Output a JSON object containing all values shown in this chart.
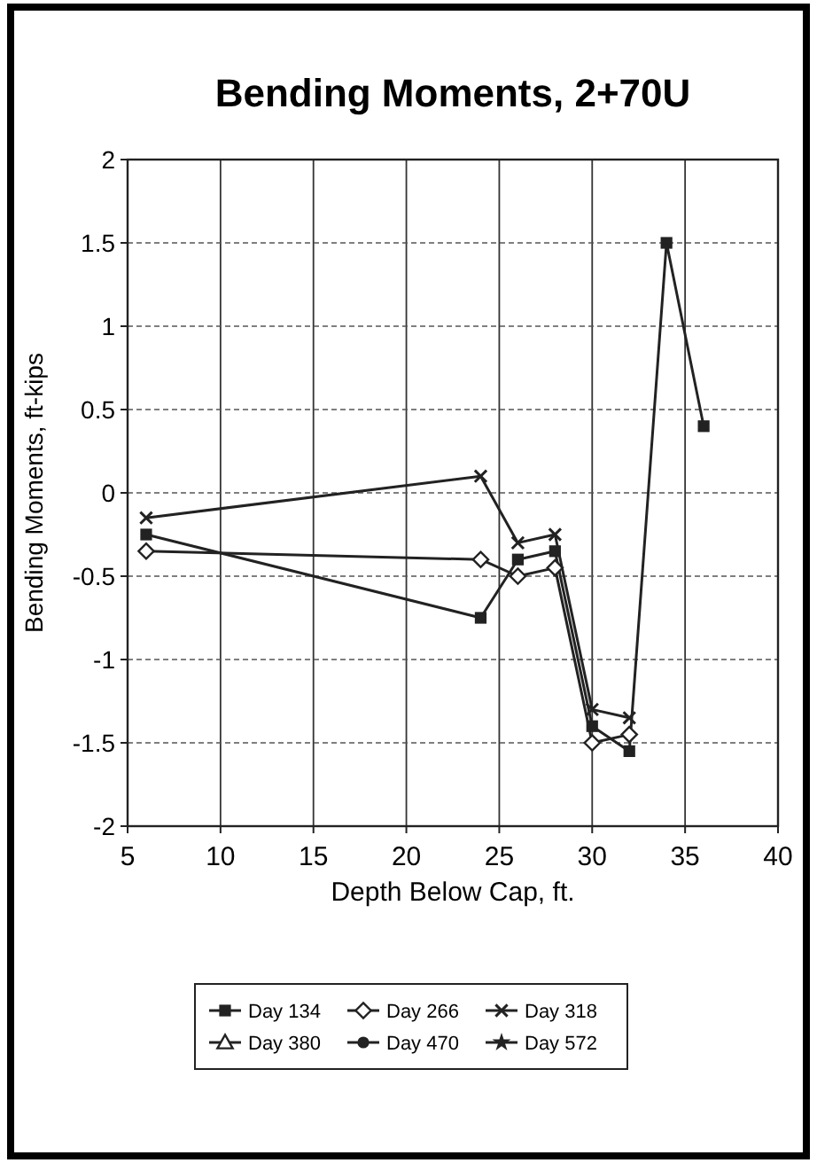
{
  "chart_data": {
    "type": "line",
    "title": "Bending Moments, 2+70U",
    "xlabel": "Depth Below Cap, ft.",
    "ylabel": "Bending Moments, ft-kips",
    "xlim": [
      5,
      40
    ],
    "xticks": [
      5,
      10,
      15,
      20,
      25,
      30,
      35,
      40
    ],
    "ylim": [
      -2,
      2
    ],
    "yticks": [
      -2,
      -1.5,
      -1,
      -0.5,
      0,
      0.5,
      1,
      1.5,
      2
    ],
    "grid": true,
    "legend": "bottom",
    "series": [
      {
        "name": "Day 134",
        "color": "#222222",
        "marker": "square",
        "x": [
          6,
          24,
          26,
          28,
          30,
          32,
          34,
          36
        ],
        "values": [
          -0.25,
          -0.75,
          -0.4,
          -0.35,
          -1.4,
          -1.55,
          1.5,
          0.4
        ]
      },
      {
        "name": "Day 266",
        "color": "#222222",
        "marker": "diamond",
        "x": [
          6,
          24,
          26,
          28,
          30,
          32
        ],
        "values": [
          -0.35,
          -0.4,
          -0.5,
          -0.45,
          -1.5,
          -1.45
        ]
      },
      {
        "name": "Day 318",
        "color": "#222222",
        "marker": "cross",
        "x": [
          6,
          24,
          26,
          28,
          30,
          32
        ],
        "values": [
          -0.15,
          0.1,
          -0.3,
          -0.25,
          -1.3,
          -1.35
        ]
      },
      {
        "name": "Day 380",
        "color": "#222222",
        "marker": "triangle"
      },
      {
        "name": "Day 470",
        "color": "#222222",
        "marker": "circle"
      },
      {
        "name": "Day 572",
        "color": "#222222",
        "marker": "star"
      }
    ]
  }
}
